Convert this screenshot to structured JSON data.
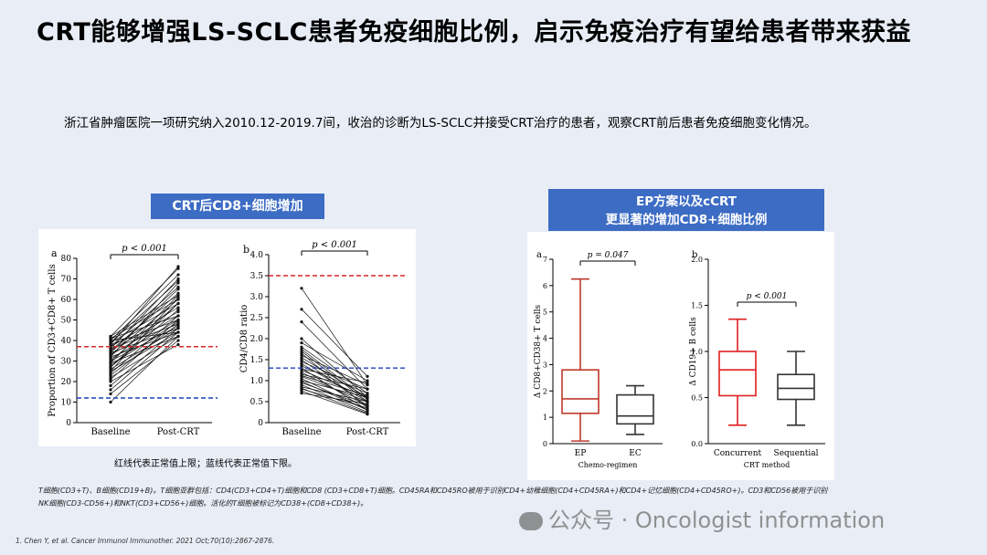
{
  "title": "CRT能够增强LS-SCLC患者免疫细胞比例，启示免疫治疗有望给患者带来获益",
  "intro": "浙江省肿瘤医院一项研究纳入2010.12-2019.7间，收治的诊断为LS-SCLC并接受CRT治疗的患者，观察CRT前后患者免疫细胞变化情况。",
  "left_tag": "CRT后CD8+细胞增加",
  "right_tag_line1": "EP方案以及cCRT",
  "right_tag_line2": "更显著的增加CD8+细胞比例",
  "caption": "红线代表正常值上限；蓝线代表正常值下限。",
  "footnote_line1": "T细胞(CD3+T)、B细胞(CD19+B)。T细胞亚群包括：CD4(CD3+CD4+T)细胞和CD8 (CD3+CD8+T)细胞。CD45RA和CD45RO被用于识别CD4+幼稚细胞(CD4+CD45RA+)和CD4+记忆细胞(CD4+CD45RO+)。CD3和CD56被用于识别",
  "footnote_line2": "NK细胞(CD3-CD56+)和NKT(CD3+CD56+)细胞。活化的T细胞被标记为CD38+(CD8+CD38+)。",
  "reference": "1. Chen Y, et al. Cancer Immunol Immunother. 2021 Oct;70(10):2867-2876.",
  "watermark": "公众号 · Oncologist information",
  "colors": {
    "accent": "#3d6cc4",
    "upper_limit": "#d62728",
    "lower_limit": "#1f3fbf",
    "box_ep": "#c0392b",
    "box_gray": "#333333",
    "box_red": "#e02020"
  },
  "chart_data": [
    {
      "type": "line",
      "panel": "a",
      "ylabel": "Proportion of CD3+CD8+ T cells",
      "categories": [
        "Baseline",
        "Post-CRT"
      ],
      "ylim": [
        0,
        80
      ],
      "yticks": [
        0,
        10,
        20,
        30,
        40,
        50,
        60,
        70,
        80
      ],
      "significance": "p < 0.001",
      "upper_limit": 37,
      "lower_limit": 12,
      "pairs": [
        [
          10,
          42
        ],
        [
          14,
          40
        ],
        [
          16,
          44
        ],
        [
          18,
          46
        ],
        [
          20,
          38
        ],
        [
          21,
          50
        ],
        [
          22,
          42
        ],
        [
          23,
          48
        ],
        [
          24,
          52
        ],
        [
          25,
          44
        ],
        [
          26,
          46
        ],
        [
          27,
          55
        ],
        [
          28,
          49
        ],
        [
          29,
          42
        ],
        [
          30,
          58
        ],
        [
          30,
          47
        ],
        [
          31,
          50
        ],
        [
          32,
          44
        ],
        [
          33,
          60
        ],
        [
          33,
          52
        ],
        [
          34,
          46
        ],
        [
          35,
          63
        ],
        [
          35,
          54
        ],
        [
          36,
          48
        ],
        [
          37,
          66
        ],
        [
          37,
          56
        ],
        [
          38,
          50
        ],
        [
          39,
          69
        ],
        [
          39,
          58
        ],
        [
          40,
          44
        ],
        [
          40,
          72
        ],
        [
          41,
          60
        ],
        [
          41,
          52
        ],
        [
          42,
          75
        ],
        [
          42,
          62
        ],
        [
          38,
          76
        ],
        [
          36,
          70
        ],
        [
          34,
          65
        ],
        [
          32,
          68
        ],
        [
          29,
          62
        ],
        [
          27,
          58
        ],
        [
          25,
          61
        ]
      ]
    },
    {
      "type": "line",
      "panel": "b",
      "ylabel": "CD4/CD8 ratio",
      "categories": [
        "Baseline",
        "Post-CRT"
      ],
      "ylim": [
        0,
        4.0
      ],
      "yticks": [
        0,
        0.5,
        1.0,
        1.5,
        2.0,
        2.5,
        3.0,
        3.5,
        4.0
      ],
      "yticklabels": [
        "0",
        "0.5",
        "1.0",
        "1.5",
        "2.0",
        "2.5",
        "3.0",
        "3.5",
        "4.0"
      ],
      "significance": "p < 0.001",
      "upper_limit": 3.5,
      "lower_limit": 1.3,
      "pairs": [
        [
          3.2,
          0.9
        ],
        [
          2.7,
          1.1
        ],
        [
          2.4,
          0.8
        ],
        [
          2.0,
          0.6
        ],
        [
          1.9,
          1.0
        ],
        [
          1.8,
          0.7
        ],
        [
          1.7,
          0.5
        ],
        [
          1.6,
          0.9
        ],
        [
          1.55,
          0.6
        ],
        [
          1.5,
          0.4
        ],
        [
          1.45,
          0.8
        ],
        [
          1.4,
          0.5
        ],
        [
          1.35,
          0.7
        ],
        [
          1.3,
          0.3
        ],
        [
          1.25,
          0.6
        ],
        [
          1.2,
          0.4
        ],
        [
          1.15,
          0.8
        ],
        [
          1.1,
          0.5
        ],
        [
          1.05,
          0.3
        ],
        [
          1.0,
          0.6
        ],
        [
          0.95,
          0.4
        ],
        [
          0.9,
          0.25
        ],
        [
          0.85,
          0.5
        ],
        [
          0.8,
          0.35
        ],
        [
          0.75,
          0.2
        ],
        [
          0.7,
          0.45
        ],
        [
          1.75,
          0.55
        ],
        [
          1.65,
          0.35
        ],
        [
          1.28,
          0.95
        ],
        [
          1.12,
          0.65
        ],
        [
          0.98,
          0.3
        ],
        [
          0.82,
          0.22
        ]
      ]
    },
    {
      "type": "box",
      "panel": "a",
      "ylabel": "Δ CD8+CD38+ T cells",
      "xlabel": "Chemo-regimen",
      "categories": [
        "EP",
        "EC"
      ],
      "ylim": [
        0,
        7
      ],
      "yticks": [
        0,
        1,
        2,
        3,
        4,
        5,
        6,
        7
      ],
      "significance": "p = 0.047",
      "boxes": [
        {
          "min": 0.1,
          "q1": 1.15,
          "median": 1.7,
          "q3": 2.8,
          "max": 6.25
        },
        {
          "min": 0.35,
          "q1": 0.75,
          "median": 1.05,
          "q3": 1.85,
          "max": 2.2
        }
      ]
    },
    {
      "type": "box",
      "panel": "b",
      "ylabel": "Δ CD19+ B cells",
      "xlabel": "CRT method",
      "categories": [
        "Concurrent",
        "Sequential"
      ],
      "ylim": [
        0,
        2.0
      ],
      "yticks": [
        0,
        0.5,
        1.0,
        1.5,
        2.0
      ],
      "yticklabels": [
        "0.0",
        "0.5",
        "1.0",
        "1.5",
        "2.0"
      ],
      "significance": "p < 0.001",
      "boxes": [
        {
          "min": 0.2,
          "q1": 0.52,
          "median": 0.8,
          "q3": 1.0,
          "max": 1.35
        },
        {
          "min": 0.2,
          "q1": 0.48,
          "median": 0.6,
          "q3": 0.75,
          "max": 1.0
        }
      ]
    }
  ]
}
